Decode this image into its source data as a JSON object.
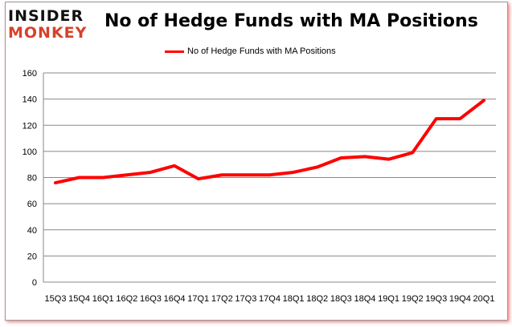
{
  "logo": {
    "line1": "INSIDER",
    "line2": "MONKEY"
  },
  "chart_data": {
    "type": "line",
    "title": "No of Hedge Funds with MA Positions",
    "xlabel": "",
    "ylabel": "",
    "categories": [
      "15Q3",
      "15Q4",
      "16Q1",
      "16Q2",
      "16Q3",
      "16Q4",
      "17Q1",
      "17Q2",
      "17Q3",
      "17Q4",
      "18Q1",
      "18Q2",
      "18Q3",
      "18Q4",
      "19Q1",
      "19Q2",
      "19Q3",
      "19Q4",
      "20Q1"
    ],
    "series": [
      {
        "name": "No of Hedge Funds with MA Positions",
        "color": "#ff0000",
        "values": [
          76,
          80,
          80,
          82,
          84,
          89,
          79,
          82,
          82,
          82,
          84,
          88,
          95,
          96,
          94,
          99,
          125,
          125,
          139
        ]
      }
    ],
    "ylim": [
      0,
      160
    ],
    "yticks": [
      0,
      20,
      40,
      60,
      80,
      100,
      120,
      140,
      160
    ],
    "grid": true,
    "legend_position": "top"
  }
}
